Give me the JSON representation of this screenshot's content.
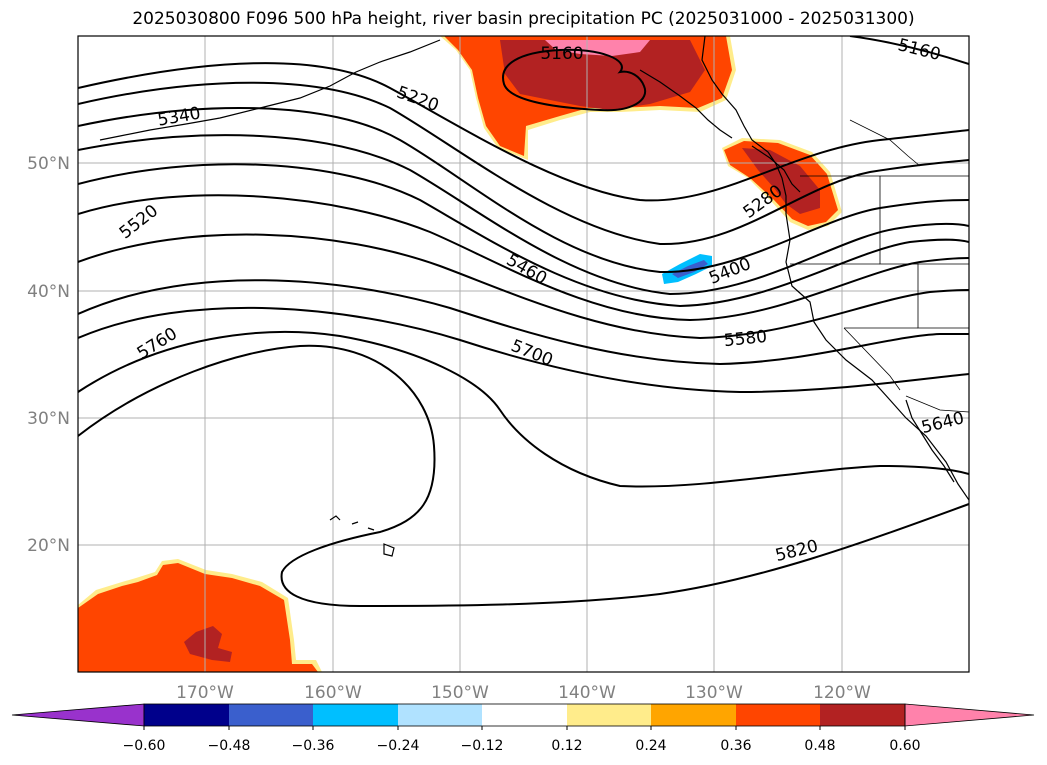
{
  "title": "2025030800 F096 500 hPa height, river basin precipitation PC (2025031000 - 2025031300)",
  "map": {
    "lon_range": [
      -180,
      -110
    ],
    "lat_range": [
      10,
      60
    ],
    "lat_ticks": [
      "20°N",
      "30°N",
      "40°N",
      "50°N"
    ],
    "lon_ticks": [
      "170°W",
      "160°W",
      "150°W",
      "140°W",
      "130°W",
      "120°W"
    ],
    "grid": true
  },
  "contour_labels": [
    "5160",
    "5160",
    "5220",
    "5280",
    "5340",
    "5400",
    "5460",
    "5520",
    "5580",
    "5640",
    "5700",
    "5760",
    "5820"
  ],
  "colorbar": {
    "ticks": [
      "−0.60",
      "−0.48",
      "−0.36",
      "−0.24",
      "−0.12",
      "0.12",
      "0.24",
      "0.36",
      "0.48",
      "0.60"
    ],
    "colors": [
      "#9932cc",
      "#00008b",
      "#3a5fcd",
      "#00bfff",
      "#b0e2ff",
      "#ffffff",
      "#ffec8b",
      "#ffa500",
      "#ff4500",
      "#b22222",
      "#ff82ab"
    ]
  },
  "colors": {
    "positive_low": "#ffec8b",
    "positive_mid": "#ffa500",
    "positive_high": "#ff4500",
    "positive_higher": "#b22222",
    "positive_max": "#ff82ab",
    "negative_mid": "#00bfff",
    "negative_high": "#3a5fcd"
  }
}
